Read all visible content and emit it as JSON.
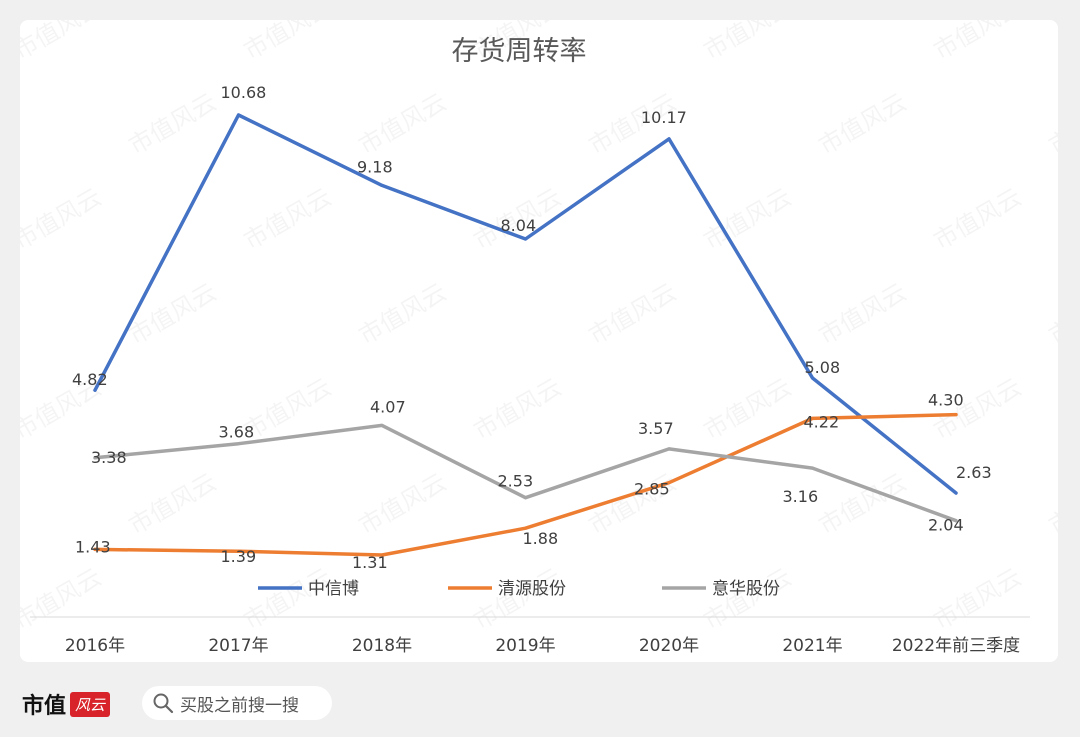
{
  "chart_data": {
    "type": "line",
    "title": "存货周转率",
    "categories": [
      "2016年",
      "2017年",
      "2018年",
      "2019年",
      "2020年",
      "2021年",
      "2022年前三季度"
    ],
    "series": [
      {
        "name": "中信博",
        "color": "#4472c4",
        "values": [
          4.82,
          10.68,
          9.18,
          8.04,
          10.17,
          5.08,
          2.63
        ]
      },
      {
        "name": "清源股份",
        "color": "#ed7d31",
        "values": [
          1.43,
          1.39,
          1.31,
          1.88,
          2.85,
          4.22,
          4.3
        ]
      },
      {
        "name": "意华股份",
        "color": "#a5a5a5",
        "values": [
          3.38,
          3.68,
          4.07,
          2.53,
          3.57,
          3.16,
          2.04
        ]
      }
    ],
    "legend_position": "bottom",
    "grid": false
  },
  "watermark": "市值风云",
  "footer": {
    "brand": "市值",
    "brand_mark": "风云",
    "search_placeholder": "买股之前搜一搜",
    "search_icon": "search-icon"
  }
}
